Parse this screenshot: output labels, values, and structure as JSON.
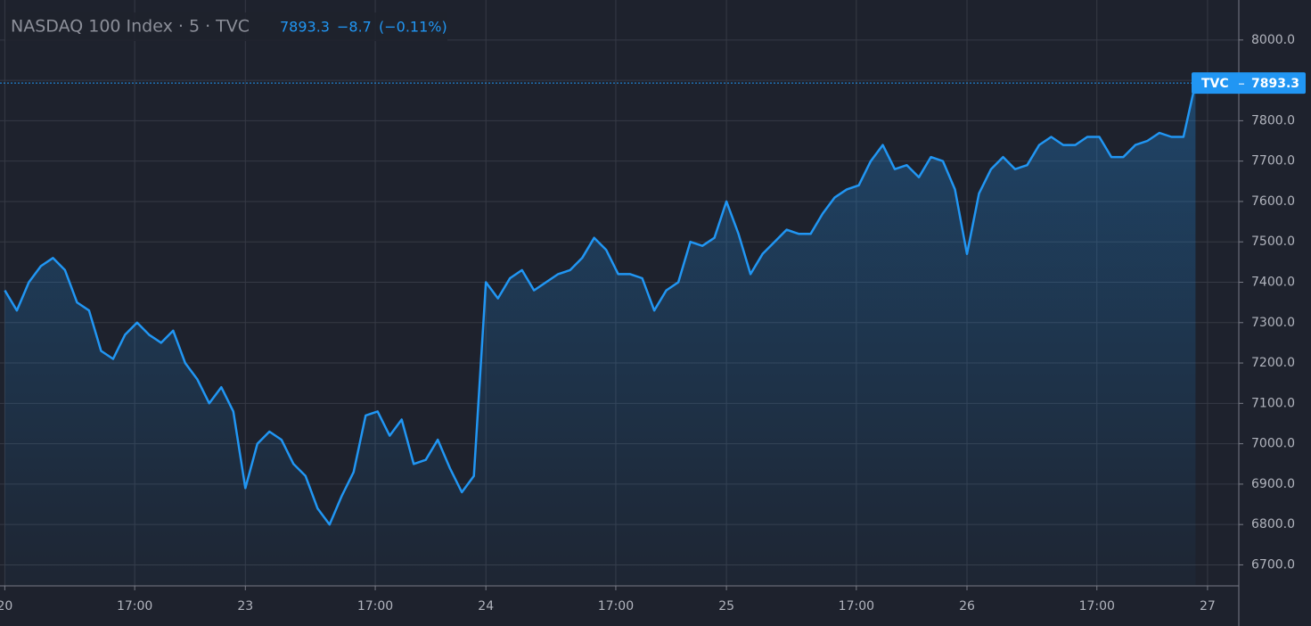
{
  "chart_data": {
    "type": "area",
    "title": "NASDAQ 100 Index · 5 · TVC",
    "change_label": "−8.7",
    "change_percent_label": "(−0.11%)",
    "price_badge_source": "TVC",
    "series": [
      {
        "name": "NASDAQ 100 Index",
        "color": "#2196f3",
        "values": [
          7380,
          7330,
          7400,
          7440,
          7460,
          7430,
          7350,
          7330,
          7230,
          7210,
          7270,
          7300,
          7270,
          7250,
          7280,
          7200,
          7160,
          7100,
          7140,
          7080,
          6890,
          7000,
          7030,
          7010,
          6950,
          6920,
          6840,
          6800,
          6870,
          6930,
          7070,
          7080,
          7020,
          7060,
          6950,
          6960,
          7010,
          6940,
          6880,
          6920,
          7400,
          7360,
          7410,
          7430,
          7380,
          7400,
          7420,
          7430,
          7460,
          7510,
          7480,
          7420,
          7420,
          7410,
          7330,
          7380,
          7400,
          7500,
          7490,
          7510,
          7600,
          7520,
          7420,
          7470,
          7500,
          7530,
          7520,
          7520,
          7570,
          7610,
          7630,
          7640,
          7700,
          7740,
          7680,
          7690,
          7660,
          7710,
          7700,
          7630,
          7470,
          7620,
          7680,
          7710,
          7680,
          7690,
          7740,
          7760,
          7740,
          7740,
          7760,
          7760,
          7710,
          7710,
          7740,
          7750,
          7770,
          7760,
          7760,
          7893.3
        ]
      }
    ],
    "xlim": [
      -0.4,
      102.6
    ],
    "xticks": [
      {
        "value": 0,
        "label": "20"
      },
      {
        "value": 10.8,
        "label": "17:00"
      },
      {
        "value": 20,
        "label": "23"
      },
      {
        "value": 30.8,
        "label": "17:00"
      },
      {
        "value": 40,
        "label": "24"
      },
      {
        "value": 50.8,
        "label": "17:00"
      },
      {
        "value": 60,
        "label": "25"
      },
      {
        "value": 70.8,
        "label": "17:00"
      },
      {
        "value": 80,
        "label": "26"
      },
      {
        "value": 90.8,
        "label": "17:00"
      },
      {
        "value": 100,
        "label": "27"
      }
    ],
    "ylim": [
      6648,
      8099
    ],
    "yticks": [
      {
        "value": 6700,
        "label": "6700.0"
      },
      {
        "value": 6800,
        "label": "6800.0"
      },
      {
        "value": 6900,
        "label": "6900.0"
      },
      {
        "value": 7000,
        "label": "7000.0"
      },
      {
        "value": 7100,
        "label": "7100.0"
      },
      {
        "value": 7200,
        "label": "7200.0"
      },
      {
        "value": 7300,
        "label": "7300.0"
      },
      {
        "value": 7400,
        "label": "7400.0"
      },
      {
        "value": 7500,
        "label": "7500.0"
      },
      {
        "value": 7600,
        "label": "7600.0"
      },
      {
        "value": 7700,
        "label": "7700.0"
      },
      {
        "value": 7800,
        "label": "7800.0"
      },
      {
        "value": 7900,
        "label": "7900.0"
      },
      {
        "value": 8000,
        "label": "8000.0"
      }
    ],
    "grid": true
  }
}
